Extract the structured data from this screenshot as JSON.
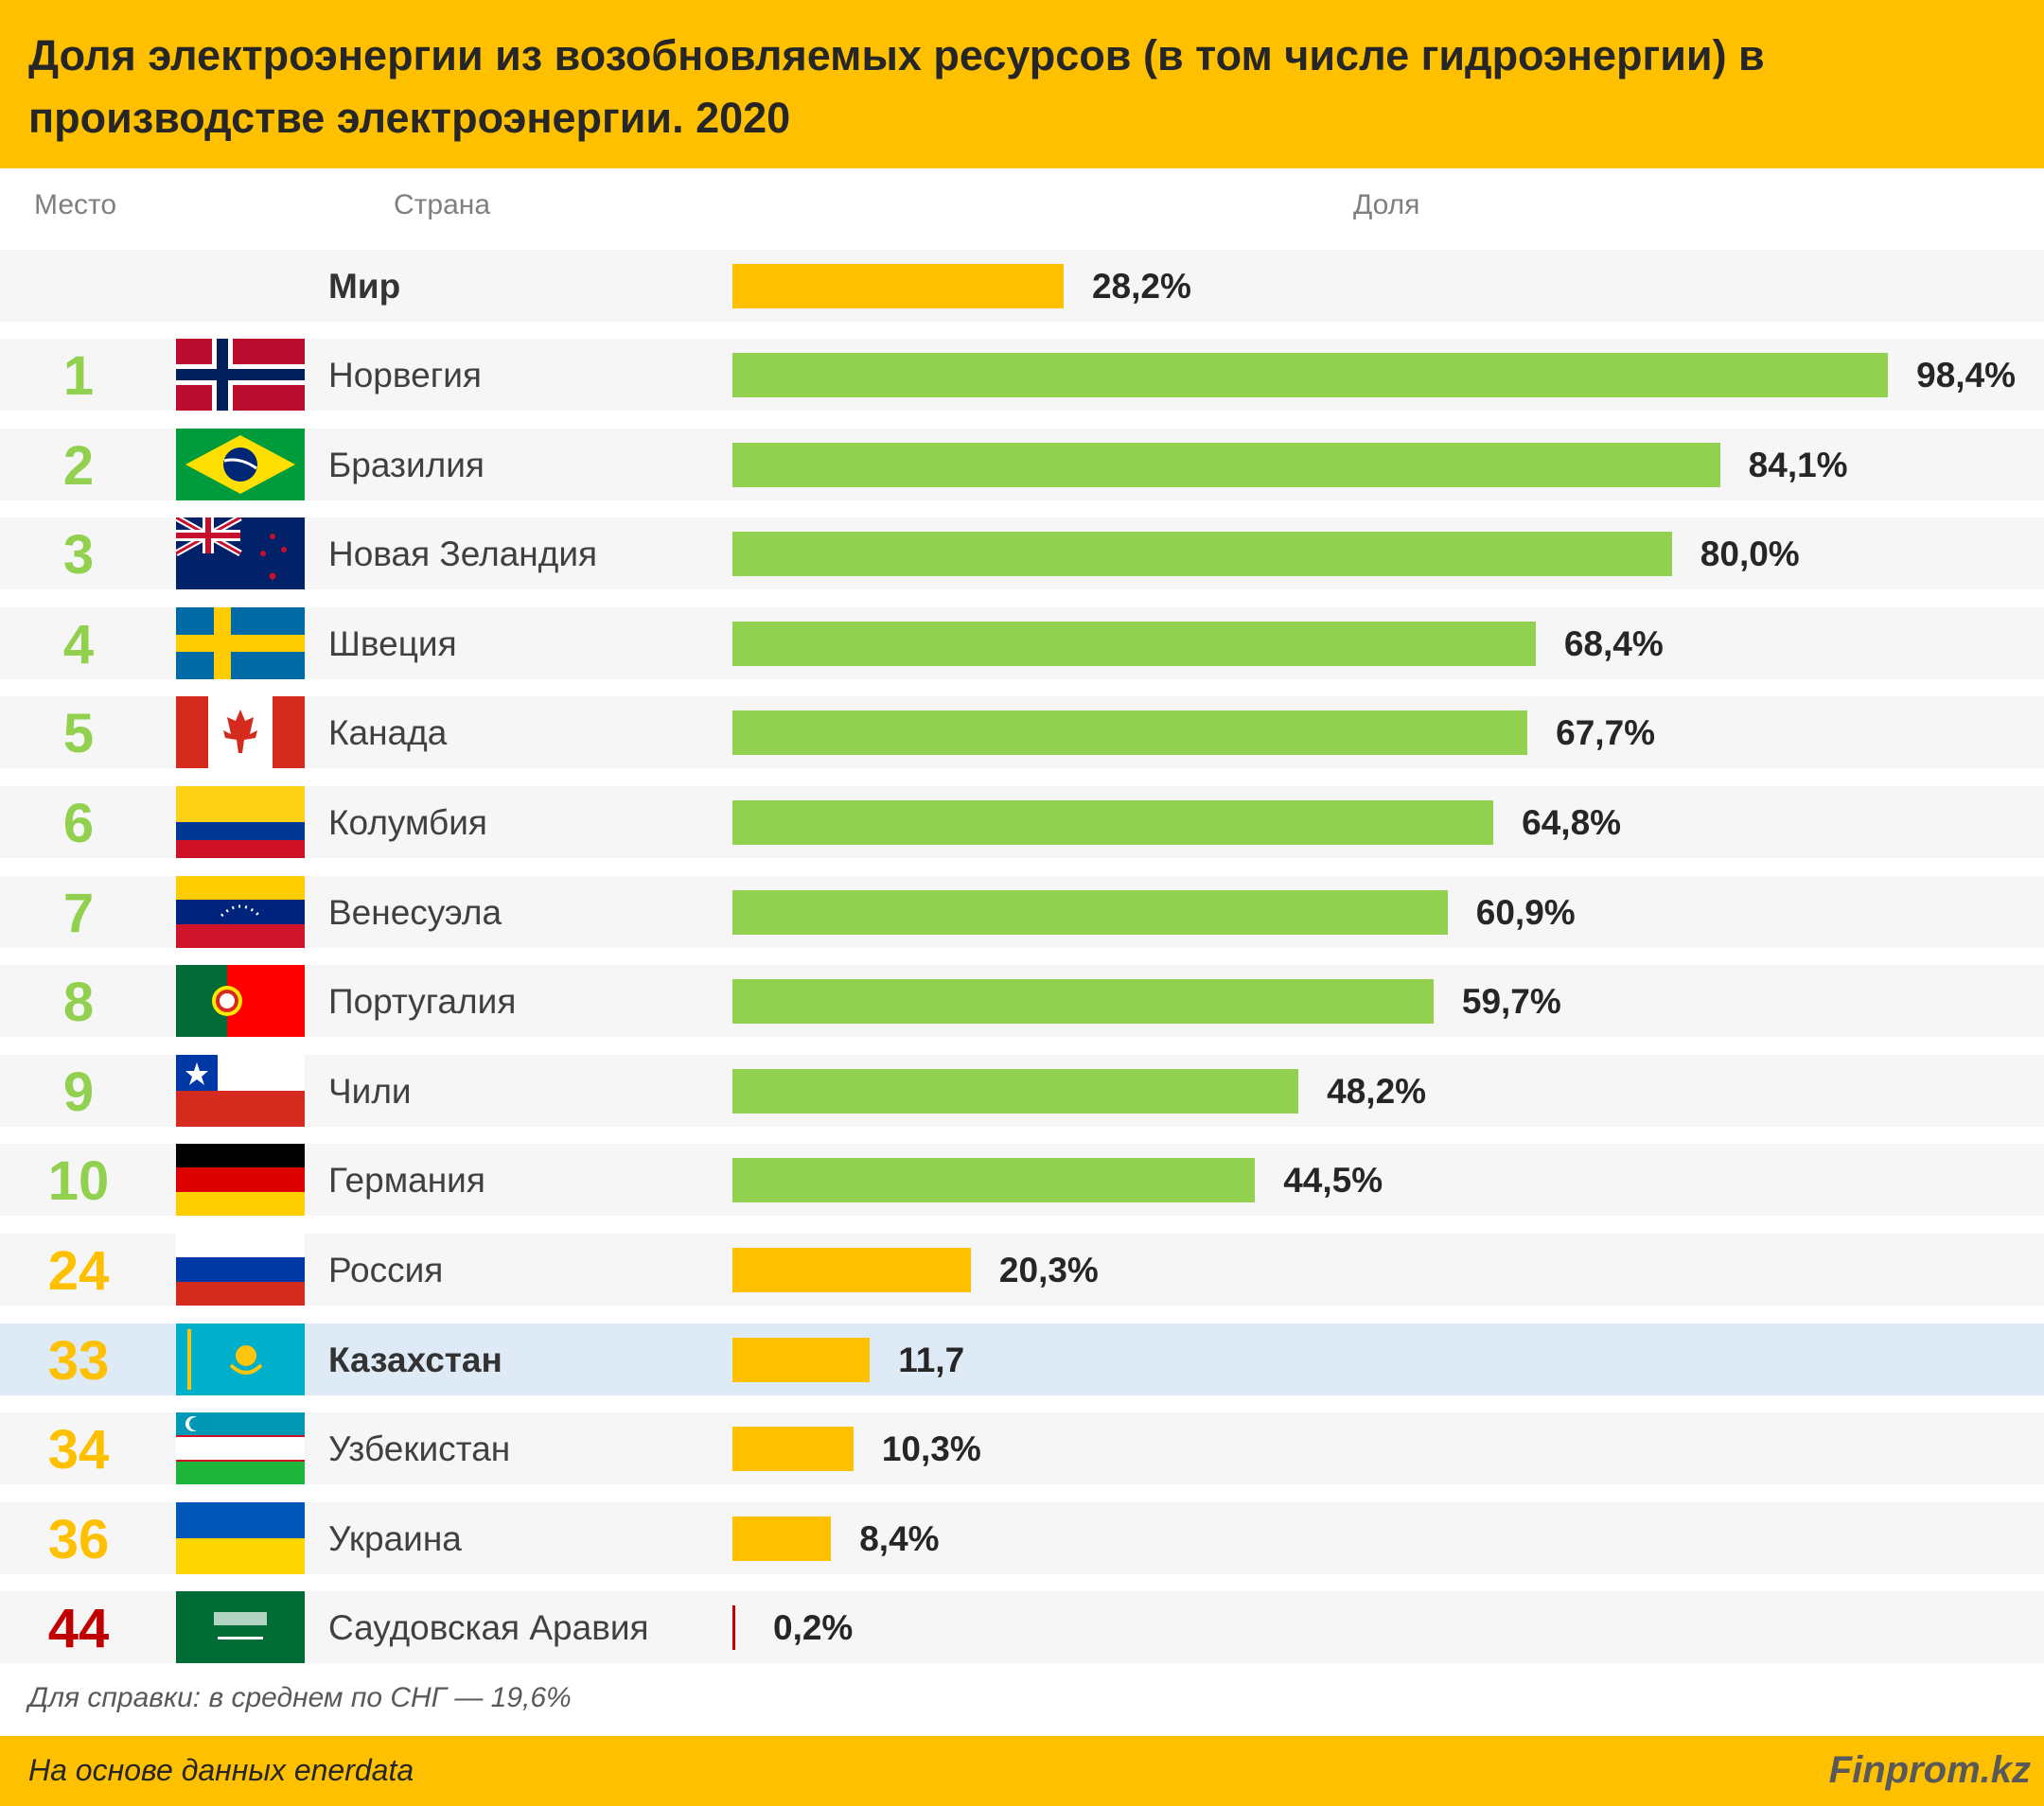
{
  "header": {
    "title": "Доля электроэнергии из возобновляемых ресурсов (в том числе гидроэнергии) в производстве электроэнергии. 2020"
  },
  "columns": {
    "rank": "Место",
    "country": "Страна",
    "share": "Доля"
  },
  "colors": {
    "accent": "#FFC000",
    "top10": "#92D050",
    "low": "#C00000",
    "highlight_row": "#DEEAF6"
  },
  "chart_data": {
    "type": "bar",
    "orientation": "horizontal",
    "title": "Доля электроэнергии из возобновляемых ресурсов (в том числе гидроэнергии) в производстве электроэнергии. 2020",
    "unit": "%",
    "xlim": [
      0,
      100
    ],
    "rows": [
      {
        "rank": "",
        "country": "Мир",
        "value": 28.2,
        "label": "28,2%",
        "color": "#FFC000",
        "flag": "",
        "bold": true
      },
      {
        "rank": "1",
        "country": "Норвегия",
        "value": 98.4,
        "label": "98,4%",
        "color": "#92D050",
        "flag": "norway"
      },
      {
        "rank": "2",
        "country": "Бразилия",
        "value": 84.1,
        "label": "84,1%",
        "color": "#92D050",
        "flag": "brazil"
      },
      {
        "rank": "3",
        "country": "Новая Зеландия",
        "value": 80.0,
        "label": "80,0%",
        "color": "#92D050",
        "flag": "new-zealand"
      },
      {
        "rank": "4",
        "country": "Швеция",
        "value": 68.4,
        "label": "68,4%",
        "color": "#92D050",
        "flag": "sweden"
      },
      {
        "rank": "5",
        "country": "Канада",
        "value": 67.7,
        "label": "67,7%",
        "color": "#92D050",
        "flag": "canada"
      },
      {
        "rank": "6",
        "country": "Колумбия",
        "value": 64.8,
        "label": "64,8%",
        "color": "#92D050",
        "flag": "colombia"
      },
      {
        "rank": "7",
        "country": "Венесуэла",
        "value": 60.9,
        "label": "60,9%",
        "color": "#92D050",
        "flag": "venezuela"
      },
      {
        "rank": "8",
        "country": "Португалия",
        "value": 59.7,
        "label": "59,7%",
        "color": "#92D050",
        "flag": "portugal"
      },
      {
        "rank": "9",
        "country": "Чили",
        "value": 48.2,
        "label": "48,2%",
        "color": "#92D050",
        "flag": "chile"
      },
      {
        "rank": "10",
        "country": "Германия",
        "value": 44.5,
        "label": "44,5%",
        "color": "#92D050",
        "flag": "germany"
      },
      {
        "rank": "24",
        "country": "Россия",
        "value": 20.3,
        "label": "20,3%",
        "color": "#FFC000",
        "flag": "russia"
      },
      {
        "rank": "33",
        "country": "Казахстан",
        "value": 11.7,
        "label": "11,7",
        "color": "#FFC000",
        "flag": "kazakhstan",
        "bold": true,
        "highlight": true
      },
      {
        "rank": "34",
        "country": "Узбекистан",
        "value": 10.3,
        "label": "10,3%",
        "color": "#FFC000",
        "flag": "uzbekistan"
      },
      {
        "rank": "36",
        "country": "Украина",
        "value": 8.4,
        "label": "8,4%",
        "color": "#FFC000",
        "flag": "ukraine"
      },
      {
        "rank": "44",
        "country": "Саудовская Аравия",
        "value": 0.2,
        "label": "0,2%",
        "color": "#C00000",
        "flag": "saudi-arabia"
      }
    ]
  },
  "footnote": "Для справки: в среднем по СНГ — 19,6%",
  "footer": {
    "source": "На основе данных enerdata",
    "logo": "Finprom.kz"
  }
}
